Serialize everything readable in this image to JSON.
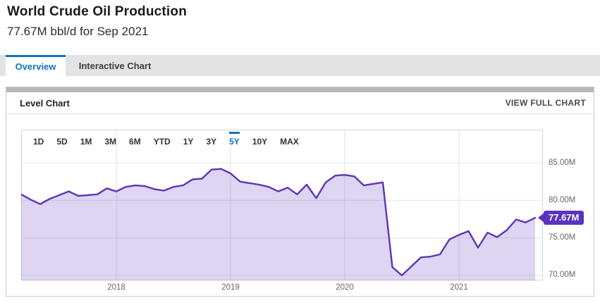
{
  "header": {
    "title": "World Crude Oil Production",
    "subtitle": "77.67M bbl/d for Sep 2021"
  },
  "tabs": [
    {
      "label": "Overview",
      "active": true
    },
    {
      "label": "Interactive Chart",
      "active": false
    }
  ],
  "panel": {
    "title": "Level Chart",
    "action": "VIEW FULL CHART"
  },
  "range_selector": {
    "options": [
      "1D",
      "5D",
      "1M",
      "3M",
      "6M",
      "YTD",
      "1Y",
      "3Y",
      "5Y",
      "10Y",
      "MAX"
    ],
    "selected": "5Y"
  },
  "colors": {
    "accent_blue": "#0f74c0",
    "line_purple": "#5c35b5",
    "fill_purple": "rgba(100,65,190,0.22)",
    "badge_purple": "#5a33c0",
    "grid": "#e3e3e3",
    "plot_border": "#d5d5d5",
    "tabbar_gray": "#e3e3e3",
    "panel_strip_gray": "#b9b9b9"
  },
  "chart_data": {
    "type": "area",
    "title": "Level Chart",
    "series_name": "World Crude Oil Production",
    "unit": "M bbl/d",
    "x": [
      "2017-03",
      "2017-04",
      "2017-05",
      "2017-06",
      "2017-07",
      "2017-08",
      "2017-09",
      "2017-10",
      "2017-11",
      "2017-12",
      "2018-01",
      "2018-02",
      "2018-03",
      "2018-04",
      "2018-05",
      "2018-06",
      "2018-07",
      "2018-08",
      "2018-09",
      "2018-10",
      "2018-11",
      "2018-12",
      "2019-01",
      "2019-02",
      "2019-03",
      "2019-04",
      "2019-05",
      "2019-06",
      "2019-07",
      "2019-08",
      "2019-09",
      "2019-10",
      "2019-11",
      "2019-12",
      "2020-01",
      "2020-02",
      "2020-03",
      "2020-04",
      "2020-05",
      "2020-06",
      "2020-07",
      "2020-08",
      "2020-09",
      "2020-10",
      "2020-11",
      "2020-12",
      "2021-01",
      "2021-02",
      "2021-03",
      "2021-04",
      "2021-05",
      "2021-06",
      "2021-07",
      "2021-08",
      "2021-09"
    ],
    "values": [
      80.8,
      80.1,
      79.5,
      80.2,
      80.7,
      81.2,
      80.6,
      80.7,
      80.8,
      81.6,
      81.2,
      81.8,
      82.0,
      81.9,
      81.5,
      81.3,
      81.8,
      82.0,
      82.8,
      82.9,
      84.1,
      84.2,
      83.6,
      82.5,
      82.3,
      82.1,
      81.8,
      81.2,
      81.7,
      80.8,
      82.1,
      80.3,
      82.4,
      83.3,
      83.4,
      83.2,
      82.0,
      82.2,
      82.4,
      71.1,
      70.0,
      71.2,
      72.4,
      72.5,
      72.8,
      74.8,
      75.4,
      75.9,
      73.7,
      75.7,
      75.1,
      76.0,
      77.45,
      77.05,
      77.67
    ],
    "y_ticks": [
      "85.00M",
      "80.00M",
      "75.00M",
      "70.00M"
    ],
    "y_tick_values": [
      85,
      80,
      75,
      70
    ],
    "x_ticks": [
      "2018",
      "2019",
      "2020",
      "2021"
    ],
    "x_tick_indices": [
      10,
      22,
      34,
      46
    ],
    "ylim": [
      69.32,
      89.43
    ],
    "grid": true,
    "legend": false,
    "last_value": 77.67,
    "last_label": "77.67M"
  }
}
